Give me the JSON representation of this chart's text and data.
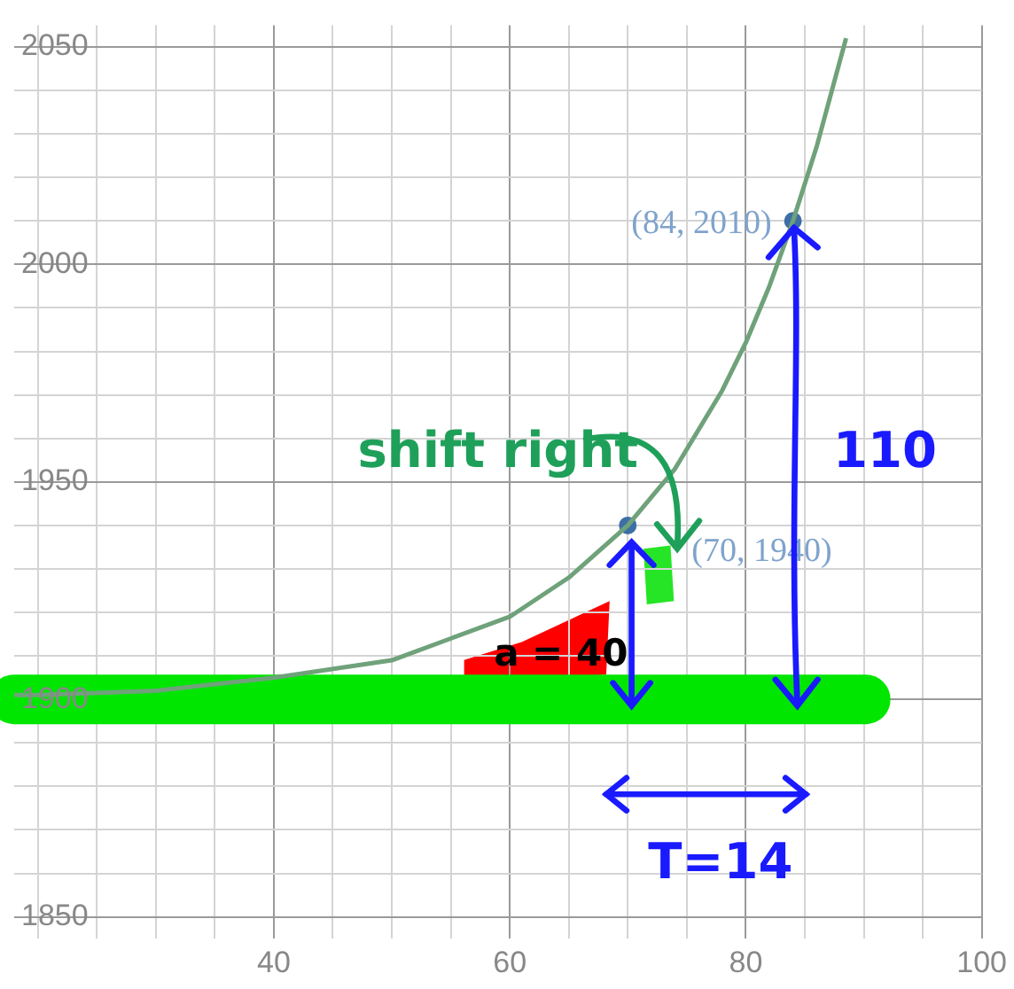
{
  "chart_data": {
    "type": "line",
    "xlim": [
      18,
      100
    ],
    "ylim": [
      1845,
      2055
    ],
    "xticks": [
      {
        "value": 20,
        "label": null
      },
      {
        "value": 25,
        "label": null
      },
      {
        "value": 30,
        "label": null
      },
      {
        "value": 35,
        "label": null
      },
      40,
      {
        "value": 45,
        "label": null
      },
      {
        "value": 50,
        "label": null
      },
      {
        "value": 55,
        "label": null
      },
      60,
      {
        "value": 65,
        "label": null
      },
      {
        "value": 70,
        "label": null
      },
      {
        "value": 75,
        "label": null
      },
      80,
      {
        "value": 85,
        "label": null
      },
      {
        "value": 90,
        "label": null
      },
      {
        "value": 95,
        "label": null
      },
      100
    ],
    "yticks": [
      1850,
      {
        "value": 1860,
        "label": null
      },
      {
        "value": 1870,
        "label": null
      },
      {
        "value": 1880,
        "label": null
      },
      {
        "value": 1890,
        "label": null
      },
      1900,
      {
        "value": 1910,
        "label": null
      },
      {
        "value": 1920,
        "label": null
      },
      {
        "value": 1930,
        "label": null
      },
      {
        "value": 1940,
        "label": null
      },
      1950,
      {
        "value": 1960,
        "label": null
      },
      {
        "value": 1970,
        "label": null
      },
      {
        "value": 1980,
        "label": null
      },
      {
        "value": 1990,
        "label": null
      },
      2000,
      {
        "value": 2010,
        "label": null
      },
      {
        "value": 2020,
        "label": null
      },
      {
        "value": 2030,
        "label": null
      },
      {
        "value": 2040,
        "label": null
      },
      2050
    ],
    "grid": true,
    "legend": false,
    "series": [
      {
        "color": "#6fa27a",
        "marker": "none",
        "x": [
          18,
          20,
          30,
          40,
          50,
          55,
          60,
          65,
          70,
          74,
          78,
          80,
          82,
          84,
          86,
          88,
          88.5
        ],
        "values": [
          1901,
          1901,
          1902,
          1905,
          1909,
          1914,
          1919,
          1928,
          1940,
          1953,
          1971,
          1982,
          1995,
          2010,
          2027,
          2047,
          2052
        ]
      },
      {
        "type": "scatter",
        "color": "#3d6fa6",
        "marker": "circle",
        "x": [
          70,
          84
        ],
        "values": [
          1940,
          2010
        ],
        "value_labels": [
          "(70, 1940)",
          "(84, 2010)"
        ]
      }
    ],
    "ref_lines": [
      {
        "axis": "y",
        "value": 1900,
        "color": "#00e600"
      }
    ],
    "annotations": [
      "shift right",
      "a = 40",
      "110",
      "T=14"
    ]
  }
}
